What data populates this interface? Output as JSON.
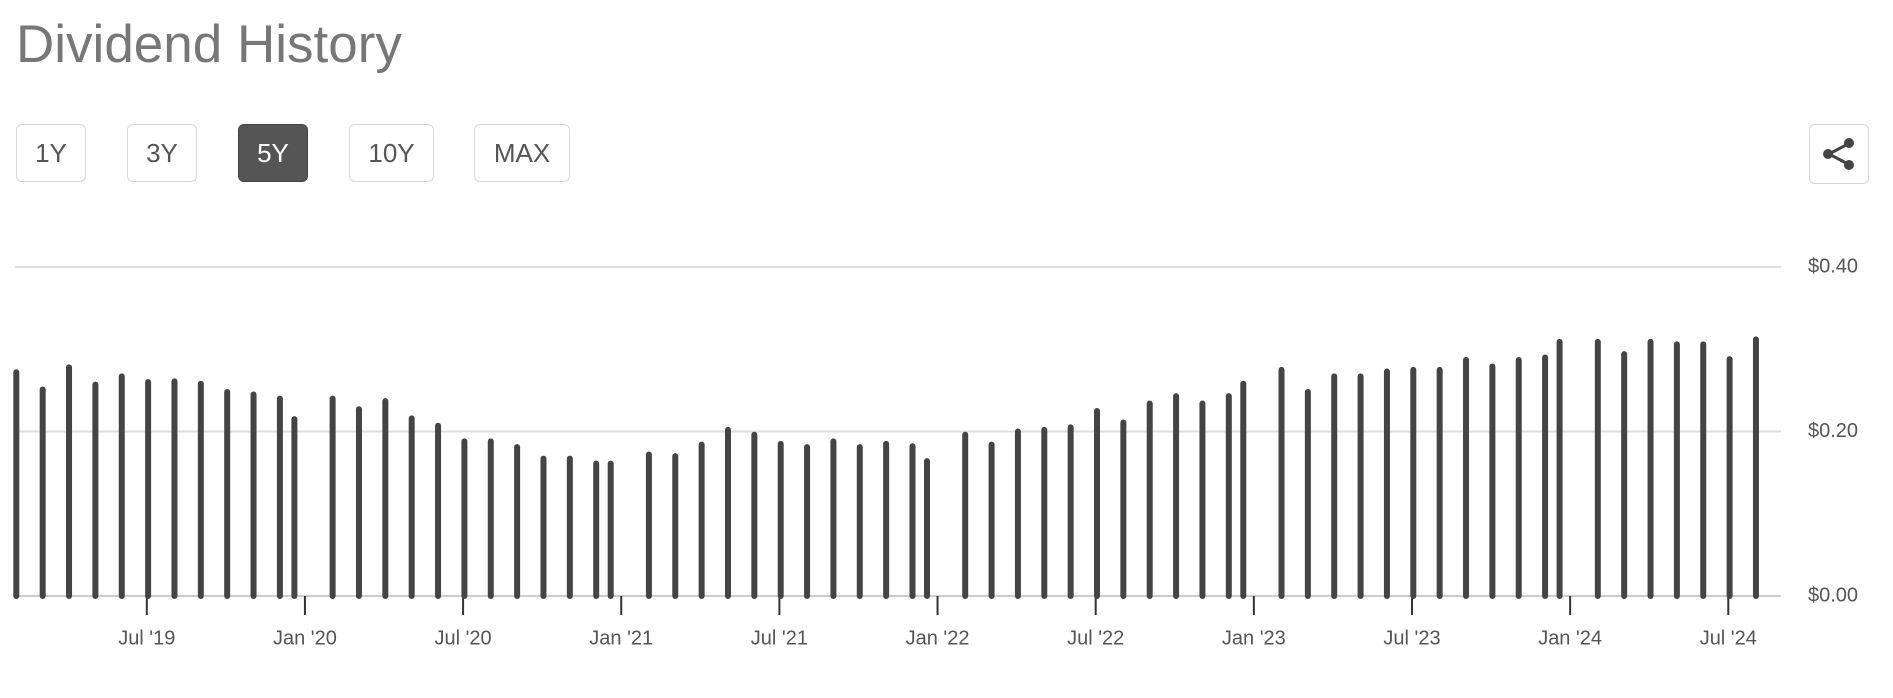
{
  "title": "Dividend History",
  "range_buttons": {
    "options": [
      "1Y",
      "3Y",
      "5Y",
      "10Y",
      "MAX"
    ],
    "selected": 2
  },
  "chart_data": {
    "type": "bar",
    "color": "#444444",
    "x": [
      "2019-02",
      "2019-03",
      "2019-04",
      "2019-05",
      "2019-06",
      "2019-07",
      "2019-08",
      "2019-09",
      "2019-10",
      "2019-11",
      "2019-12",
      "2019-12",
      "2020-02",
      "2020-03",
      "2020-04",
      "2020-05",
      "2020-06",
      "2020-07",
      "2020-08",
      "2020-09",
      "2020-10",
      "2020-11",
      "2020-12",
      "2020-12",
      "2021-02",
      "2021-03",
      "2021-04",
      "2021-05",
      "2021-06",
      "2021-07",
      "2021-08",
      "2021-09",
      "2021-10",
      "2021-11",
      "2021-12",
      "2021-12",
      "2022-02",
      "2022-03",
      "2022-04",
      "2022-05",
      "2022-06",
      "2022-07",
      "2022-08",
      "2022-09",
      "2022-10",
      "2022-11",
      "2022-12",
      "2022-12",
      "2023-02",
      "2023-03",
      "2023-04",
      "2023-05",
      "2023-06",
      "2023-07",
      "2023-08",
      "2023-09",
      "2023-10",
      "2023-11",
      "2023-12",
      "2023-12",
      "2024-02",
      "2024-03",
      "2024-04",
      "2024-05",
      "2024-06",
      "2024-07",
      "2024-08"
    ],
    "values": [
      0.272,
      0.251,
      0.278,
      0.257,
      0.267,
      0.26,
      0.261,
      0.258,
      0.248,
      0.245,
      0.24,
      0.215,
      0.24,
      0.227,
      0.237,
      0.216,
      0.207,
      0.188,
      0.188,
      0.181,
      0.167,
      0.167,
      0.161,
      0.161,
      0.172,
      0.17,
      0.184,
      0.202,
      0.196,
      0.185,
      0.181,
      0.188,
      0.181,
      0.185,
      0.182,
      0.164,
      0.196,
      0.184,
      0.2,
      0.202,
      0.205,
      0.225,
      0.211,
      0.234,
      0.243,
      0.234,
      0.243,
      0.258,
      0.275,
      0.248,
      0.267,
      0.267,
      0.273,
      0.275,
      0.275,
      0.287,
      0.279,
      0.287,
      0.29,
      0.309,
      0.309,
      0.294,
      0.309,
      0.306,
      0.306,
      0.288,
      0.312
    ],
    "xlim": [
      "2019-02",
      "2024-09"
    ],
    "xticks": [
      {
        "value": "2019-07",
        "label": "Jul '19"
      },
      {
        "value": "2020-01",
        "label": "Jan '20"
      },
      {
        "value": "2020-07",
        "label": "Jul '20"
      },
      {
        "value": "2021-01",
        "label": "Jan '21"
      },
      {
        "value": "2021-07",
        "label": "Jul '21"
      },
      {
        "value": "2022-01",
        "label": "Jan '22"
      },
      {
        "value": "2022-07",
        "label": "Jul '22"
      },
      {
        "value": "2023-01",
        "label": "Jan '23"
      },
      {
        "value": "2023-07",
        "label": "Jul '23"
      },
      {
        "value": "2024-01",
        "label": "Jan '24"
      },
      {
        "value": "2024-07",
        "label": "Jul '24"
      }
    ],
    "ylim": [
      0,
      0.4
    ],
    "yticks": [
      {
        "value": 0,
        "label": "$0.00"
      },
      {
        "value": 0.2,
        "label": "$0.20"
      },
      {
        "value": 0.4,
        "label": "$0.40"
      }
    ],
    "grid": true
  }
}
